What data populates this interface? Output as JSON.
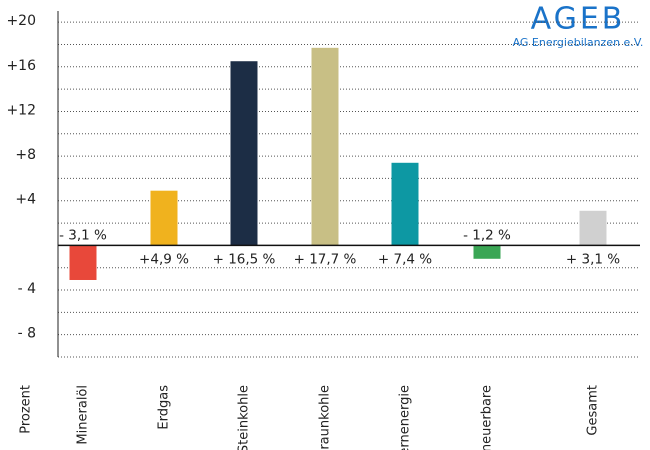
{
  "logo": {
    "name": "AGEB",
    "subtitle": "AG Energiebilanzen e.V."
  },
  "chart_data": {
    "type": "bar",
    "y_axis_label": "Prozent",
    "categories": [
      "Mineralöl",
      "Erdgas",
      "Steinkohle",
      "Braunkohle",
      "Kernenergie",
      "Erneuerbare",
      "Gesamt"
    ],
    "values": [
      -3.1,
      4.9,
      16.5,
      17.7,
      7.4,
      -1.2,
      3.1
    ],
    "value_labels": [
      "- 3,1 %",
      "+4,9 %",
      "+ 16,5 %",
      "+ 17,7 %",
      "+ 7,4 %",
      "- 1,2 %",
      "+ 3,1 %"
    ],
    "colors": [
      "#e8483a",
      "#f0b21e",
      "#1c2d45",
      "#c8bf85",
      "#0d98a3",
      "#3aa655",
      "#d0d0d0"
    ],
    "ylim": [
      -10,
      21
    ],
    "yticks": [
      {
        "value": 20,
        "label": "+20"
      },
      {
        "value": 16,
        "label": "+16"
      },
      {
        "value": 12,
        "label": "+12"
      },
      {
        "value": 8,
        "label": "+8"
      },
      {
        "value": 4,
        "label": "+4"
      },
      {
        "value": -4,
        "label": "- 4"
      },
      {
        "value": -8,
        "label": "- 8"
      }
    ],
    "minor_yticks": [
      18,
      14,
      10,
      6,
      2,
      -2,
      -6,
      -10
    ],
    "grid": true
  }
}
